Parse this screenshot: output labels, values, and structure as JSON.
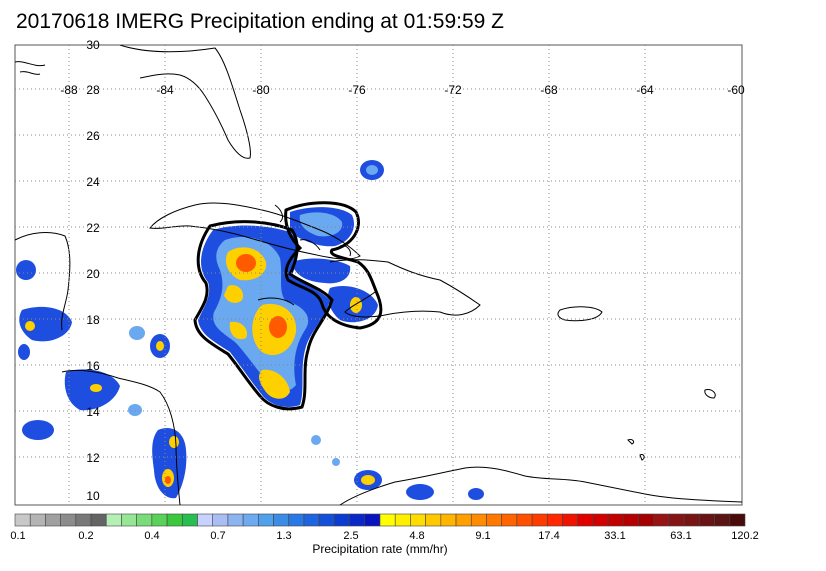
{
  "title": "20170618 IMERG Precipitation ending at 01:59:59 Z",
  "map": {
    "lat_labels": [
      "30",
      "28",
      "26",
      "24",
      "22",
      "20",
      "18",
      "16",
      "14",
      "12",
      "10"
    ],
    "lon_labels": [
      "-88",
      "-84",
      "-80",
      "-76",
      "-72",
      "-68",
      "-64",
      "-60"
    ],
    "region": "Caribbean / Florida / Greater Antilles",
    "grid": "dotted"
  },
  "colorbar": {
    "label": "Precipitation rate (mm/hr)",
    "tick_labels": [
      "0.1",
      "0.2",
      "0.4",
      "0.7",
      "1.3",
      "2.5",
      "4.8",
      "9.1",
      "17.4",
      "33.1",
      "63.1",
      "120.2"
    ],
    "colors": [
      "#c8c8c8",
      "#b4b4b4",
      "#a0a0a0",
      "#8c8c8c",
      "#787878",
      "#646464",
      "#b4f0b4",
      "#96e696",
      "#78dc78",
      "#5ad25a",
      "#3cc83c",
      "#28be50",
      "#c8d2ff",
      "#aabef5",
      "#8cb4f0",
      "#6eaaf0",
      "#50a0eb",
      "#3c8ce6",
      "#2878e6",
      "#1e64e1",
      "#1450d7",
      "#0a3cd2",
      "#0a28c8",
      "#0a14be",
      "#ffff00",
      "#fff000",
      "#ffdc00",
      "#ffc800",
      "#ffb400",
      "#ffa000",
      "#ff8c00",
      "#ff7800",
      "#ff6400",
      "#ff5000",
      "#ff3c00",
      "#ff2800",
      "#f01400",
      "#e10000",
      "#d20000",
      "#c30000",
      "#b40000",
      "#a50000",
      "#961414",
      "#871414",
      "#781414",
      "#691414",
      "#5a1414",
      "#4b0a0a"
    ]
  }
}
